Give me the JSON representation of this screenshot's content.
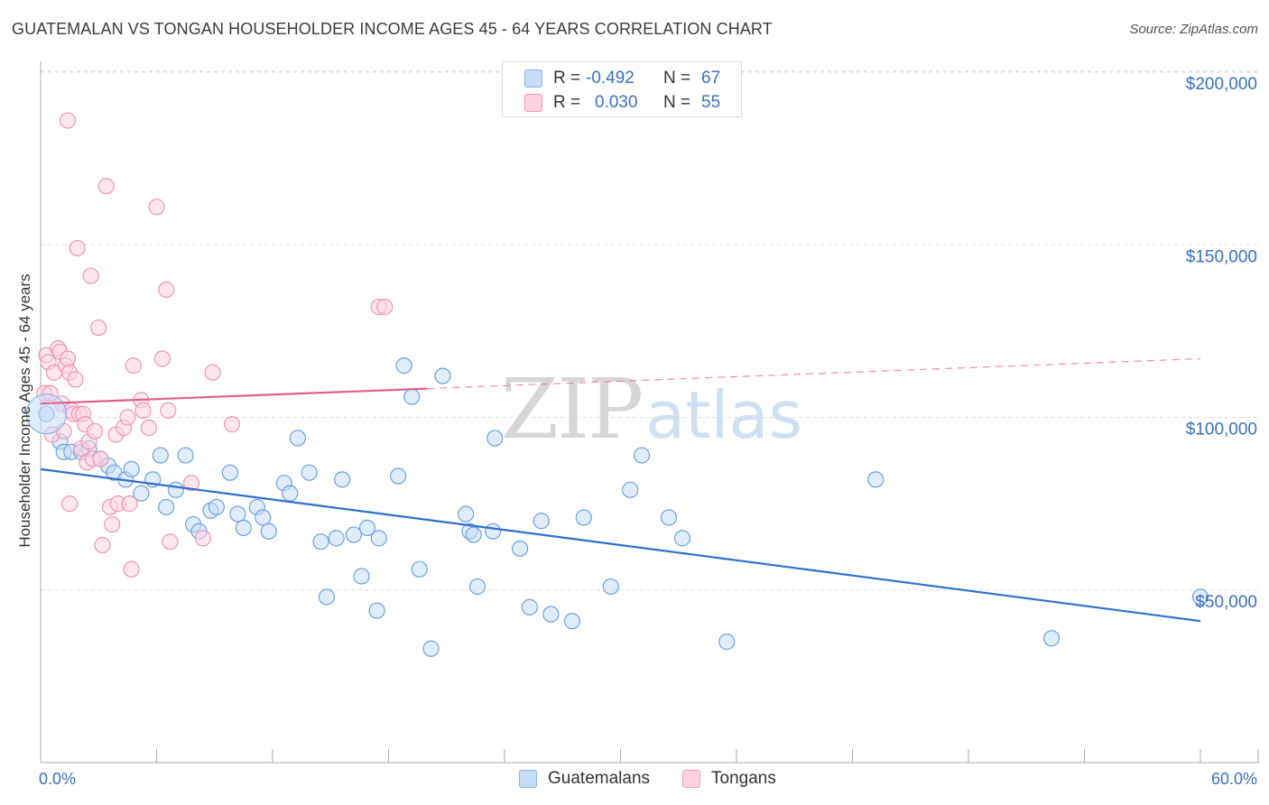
{
  "title": "GUATEMALAN VS TONGAN HOUSEHOLDER INCOME AGES 45 - 64 YEARS CORRELATION CHART",
  "source": "Source: ZipAtlas.com",
  "watermark": {
    "zip": "ZIP",
    "atlas": "atlas"
  },
  "legend": {
    "rows": [
      {
        "r_label": "R =",
        "r_value": "-0.492",
        "n_label": "N =",
        "n_value": "67",
        "color": "#8ab4ea",
        "fill": "#c7dcf6"
      },
      {
        "r_label": "R =",
        "r_value": "0.030",
        "n_label": "N =",
        "n_value": "55",
        "color": "#f09ab8",
        "fill": "#fbd3e1"
      }
    ]
  },
  "bottom_legend": [
    "Guatemalans",
    "Tongans"
  ],
  "chart_data": {
    "type": "scatter",
    "title": "GUATEMALAN VS TONGAN HOUSEHOLDER INCOME AGES 45 - 64 YEARS CORRELATION CHART",
    "xlabel": "",
    "ylabel": "Householder Income Ages 45 - 64 years",
    "xlim": [
      0,
      60
    ],
    "ylim": [
      0,
      210000
    ],
    "x_tick_labels": [
      "0.0%",
      "60.0%"
    ],
    "y_ticks": [
      50000,
      100000,
      150000,
      200000
    ],
    "y_tick_labels": [
      "$50,000",
      "$100,000",
      "$150,000",
      "$200,000"
    ],
    "grid": "horizontal dashed",
    "legend_position": "top-center",
    "series": [
      {
        "name": "Guatemalans",
        "color": "#6ea0e0",
        "fill": "#c7dcf6",
        "trend_color": "#2f6fcf",
        "r": -0.492,
        "n": 67,
        "trend": {
          "x": [
            0,
            60
          ],
          "y": [
            85000,
            41000
          ],
          "dashed_from": null
        },
        "points": [
          [
            0.3,
            101000
          ],
          [
            1.0,
            93000
          ],
          [
            1.2,
            90000
          ],
          [
            1.6,
            90000
          ],
          [
            2.1,
            90000
          ],
          [
            2.5,
            91000
          ],
          [
            3.1,
            88000
          ],
          [
            3.5,
            86000
          ],
          [
            3.8,
            84000
          ],
          [
            4.4,
            82000
          ],
          [
            4.7,
            85000
          ],
          [
            5.2,
            78000
          ],
          [
            5.8,
            82000
          ],
          [
            6.2,
            89000
          ],
          [
            6.5,
            74000
          ],
          [
            7.0,
            79000
          ],
          [
            7.5,
            89000
          ],
          [
            7.9,
            69000
          ],
          [
            8.2,
            67000
          ],
          [
            8.8,
            73000
          ],
          [
            9.1,
            74000
          ],
          [
            9.8,
            84000
          ],
          [
            10.2,
            72000
          ],
          [
            10.5,
            68000
          ],
          [
            11.2,
            74000
          ],
          [
            11.5,
            71000
          ],
          [
            11.8,
            67000
          ],
          [
            12.6,
            81000
          ],
          [
            12.9,
            78000
          ],
          [
            13.3,
            94000
          ],
          [
            13.9,
            84000
          ],
          [
            14.5,
            64000
          ],
          [
            14.8,
            48000
          ],
          [
            15.3,
            65000
          ],
          [
            15.6,
            82000
          ],
          [
            16.2,
            66000
          ],
          [
            16.6,
            54000
          ],
          [
            16.9,
            68000
          ],
          [
            17.4,
            44000
          ],
          [
            17.5,
            65000
          ],
          [
            18.5,
            83000
          ],
          [
            18.8,
            115000
          ],
          [
            19.2,
            106000
          ],
          [
            19.6,
            56000
          ],
          [
            20.2,
            33000
          ],
          [
            20.8,
            112000
          ],
          [
            22.0,
            72000
          ],
          [
            22.2,
            67000
          ],
          [
            22.4,
            66000
          ],
          [
            22.6,
            51000
          ],
          [
            23.4,
            67000
          ],
          [
            23.5,
            94000
          ],
          [
            24.8,
            62000
          ],
          [
            25.3,
            45000
          ],
          [
            25.9,
            70000
          ],
          [
            26.4,
            43000
          ],
          [
            27.5,
            41000
          ],
          [
            28.1,
            71000
          ],
          [
            29.5,
            51000
          ],
          [
            30.5,
            79000
          ],
          [
            31.1,
            89000
          ],
          [
            32.5,
            71000
          ],
          [
            33.2,
            65000
          ],
          [
            35.5,
            35000
          ],
          [
            43.2,
            82000
          ],
          [
            52.3,
            36000
          ],
          [
            60.0,
            48000
          ]
        ]
      },
      {
        "name": "Tongans",
        "color": "#ef94b3",
        "fill": "#fbd3e1",
        "trend_color": "#e0608c",
        "r": 0.03,
        "n": 55,
        "trend": {
          "x": [
            0,
            60
          ],
          "y": [
            104000,
            117000
          ],
          "dashed_from": 20
        },
        "points": [
          [
            0.2,
            107000
          ],
          [
            0.3,
            118000
          ],
          [
            0.4,
            116000
          ],
          [
            0.5,
            107000
          ],
          [
            0.6,
            95000
          ],
          [
            0.7,
            113000
          ],
          [
            0.9,
            120000
          ],
          [
            1.0,
            119000
          ],
          [
            1.1,
            104000
          ],
          [
            1.2,
            96000
          ],
          [
            1.3,
            115000
          ],
          [
            1.4,
            117000
          ],
          [
            1.4,
            186000
          ],
          [
            1.5,
            113000
          ],
          [
            1.6,
            102000
          ],
          [
            1.7,
            101000
          ],
          [
            1.8,
            111000
          ],
          [
            1.9,
            149000
          ],
          [
            2.0,
            101000
          ],
          [
            2.1,
            91000
          ],
          [
            2.2,
            101000
          ],
          [
            2.3,
            98000
          ],
          [
            2.4,
            87000
          ],
          [
            2.5,
            93000
          ],
          [
            2.6,
            141000
          ],
          [
            2.7,
            88000
          ],
          [
            2.8,
            96000
          ],
          [
            3.0,
            126000
          ],
          [
            3.1,
            88000
          ],
          [
            3.2,
            63000
          ],
          [
            3.6,
            74000
          ],
          [
            3.7,
            69000
          ],
          [
            3.9,
            95000
          ],
          [
            4.0,
            75000
          ],
          [
            4.3,
            97000
          ],
          [
            4.5,
            100000
          ],
          [
            4.6,
            75000
          ],
          [
            4.7,
            56000
          ],
          [
            4.8,
            115000
          ],
          [
            5.2,
            105000
          ],
          [
            5.3,
            102000
          ],
          [
            5.6,
            97000
          ],
          [
            6.0,
            161000
          ],
          [
            6.3,
            117000
          ],
          [
            6.5,
            137000
          ],
          [
            6.6,
            102000
          ],
          [
            6.7,
            64000
          ],
          [
            7.8,
            81000
          ],
          [
            8.4,
            65000
          ],
          [
            8.9,
            113000
          ],
          [
            9.9,
            98000
          ],
          [
            3.4,
            167000
          ],
          [
            17.5,
            132000
          ],
          [
            17.8,
            132000
          ],
          [
            1.5,
            75000
          ]
        ]
      }
    ]
  }
}
